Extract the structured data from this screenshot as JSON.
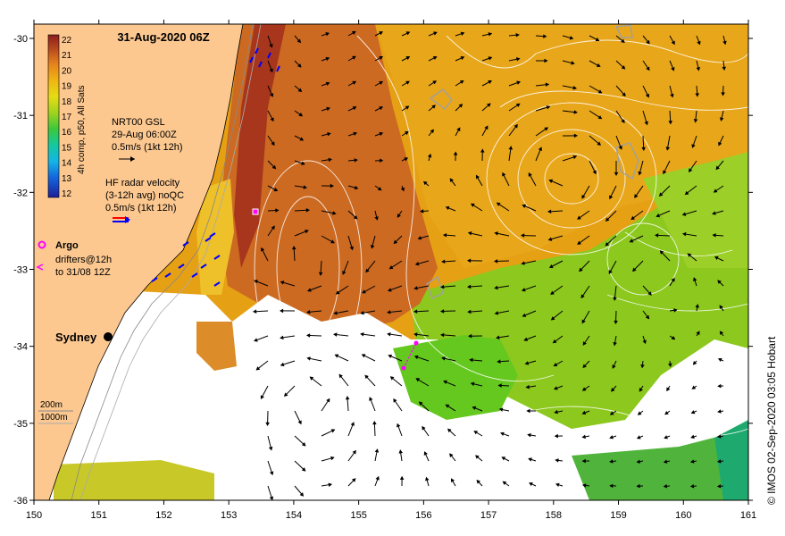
{
  "title": "31-Aug-2020 06Z",
  "colorbar": {
    "label": "4h comp, p50, All Sats",
    "ticks": [
      "22",
      "21",
      "20",
      "19",
      "18",
      "17",
      "16",
      "15",
      "14",
      "13",
      "12"
    ]
  },
  "gsl_legend": {
    "line1": "NRT00 GSL",
    "line2": "29-Aug 06:00Z",
    "line3": "0.5m/s (1kt 12h)"
  },
  "hf_legend": {
    "line1": "HF radar velocity",
    "line2": "(3-12h avg) noQC",
    "line3": "0.5m/s (1kt 12h)"
  },
  "argo_label": "Argo",
  "drifters_line1": "drifters@12h",
  "drifters_line2": "to 31/08 12Z",
  "city": "Sydney",
  "isobath_200": "200m",
  "isobath_1000": "1000m",
  "x_ticks": [
    "150",
    "151",
    "152",
    "153",
    "154",
    "155",
    "156",
    "157",
    "158",
    "159",
    "160",
    "161"
  ],
  "y_ticks": [
    "-30",
    "-31",
    "-32",
    "-33",
    "-34",
    "-35",
    "-36"
  ],
  "credit": "© IMOS 02-Sep-2020 03:05 Hobart",
  "colors": {
    "land": "#fcc890",
    "warm": "#c8641e",
    "mid": "#e6a00a",
    "cool": "#7ac814",
    "cloud": "#ffffff",
    "hf_radar": "#0000ff",
    "argo": "#ff00ff"
  }
}
